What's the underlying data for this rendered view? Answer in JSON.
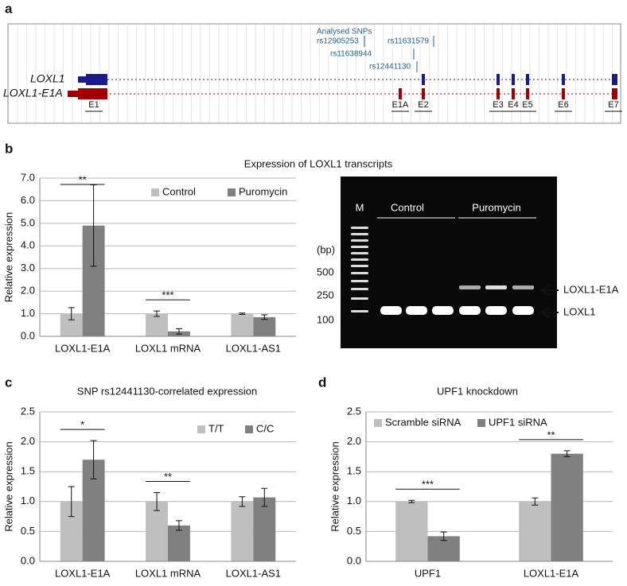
{
  "panel_labels": [
    "a",
    "b",
    "c",
    "d"
  ],
  "gene_track": {
    "snp_header": "Analysed SNPs",
    "snps": [
      "rs12905253",
      "rs11631579",
      "rs11638944",
      "rs12441130"
    ],
    "transcripts": [
      "LOXL1",
      "LOXL1-E1A"
    ],
    "exons": [
      "E1",
      "E1A",
      "E2",
      "E3",
      "E4",
      "E5",
      "E6",
      "E7"
    ]
  },
  "gel": {
    "lane_marker": "M",
    "groups": [
      "Control",
      "Puromycin"
    ],
    "unit": "(bp)",
    "ladder": [
      500,
      250,
      100
    ],
    "bands": [
      "LOXL1-E1A",
      "LOXL1"
    ]
  },
  "chart_data": [
    {
      "type": "bar",
      "title": "Expression of LOXL1 transcripts",
      "ylabel": "Relative expression",
      "categories": [
        "LOXL1-E1A",
        "LOXL1 mRNA",
        "LOXL1-AS1"
      ],
      "series": [
        {
          "name": "Control",
          "color": "#bfbfbf",
          "values": [
            1.0,
            1.0,
            1.0
          ],
          "errors": [
            0.27,
            0.12,
            0.03
          ]
        },
        {
          "name": "Puromycin",
          "color": "#808080",
          "values": [
            4.9,
            0.22,
            0.85
          ],
          "errors": [
            1.8,
            0.12,
            0.1
          ]
        }
      ],
      "significance": [
        "**",
        "***",
        null
      ],
      "ylim": [
        0,
        7
      ],
      "yticks": [
        {
          "value": 0,
          "label": "0.0"
        },
        {
          "value": 1,
          "label": "1.0"
        },
        {
          "value": 2,
          "label": "2.0"
        },
        {
          "value": 3,
          "label": "3.0"
        },
        {
          "value": 4,
          "label": "4.0"
        },
        {
          "value": 5,
          "label": "5.0"
        },
        {
          "value": 6,
          "label": "6.0"
        },
        {
          "value": 7,
          "label": "7.0"
        }
      ],
      "grid": true,
      "legend": "upper right"
    },
    {
      "type": "bar",
      "title": "SNP rs12441130-correlated expression",
      "ylabel": "Relative expression",
      "categories": [
        "LOXL1-E1A",
        "LOXL1 mRNA",
        "LOXL1-AS1"
      ],
      "series": [
        {
          "name": "T/T",
          "color": "#bfbfbf",
          "values": [
            1.0,
            1.0,
            1.0
          ],
          "errors": [
            0.25,
            0.15,
            0.08
          ]
        },
        {
          "name": "C/C",
          "color": "#808080",
          "values": [
            1.7,
            0.6,
            1.07
          ],
          "errors": [
            0.32,
            0.08,
            0.15
          ]
        }
      ],
      "significance": [
        "*",
        "**",
        null
      ],
      "ylim": [
        0,
        2.5
      ],
      "yticks": [
        {
          "value": 0,
          "label": "0.0"
        },
        0.5,
        {
          "value": 1,
          "label": "1.0"
        },
        1.5,
        {
          "value": 2,
          "label": "2.0"
        },
        2.5
      ],
      "grid": true,
      "legend": "upper right"
    },
    {
      "type": "bar",
      "title": "UPF1 knockdown",
      "ylabel": "Relative expression",
      "categories": [
        "UPF1",
        "LOXL1-E1A"
      ],
      "series": [
        {
          "name": "Scramble siRNA",
          "color": "#bfbfbf",
          "values": [
            1.0,
            1.0
          ],
          "errors": [
            0.02,
            0.06
          ]
        },
        {
          "name": "UPF1 siRNA",
          "color": "#808080",
          "values": [
            0.42,
            1.8
          ],
          "errors": [
            0.07,
            0.05
          ]
        }
      ],
      "significance": [
        "***",
        "**"
      ],
      "ylim": [
        0,
        2.5
      ],
      "yticks": [
        {
          "value": 0,
          "label": "0.0"
        },
        0.5,
        {
          "value": 1,
          "label": "1.0"
        },
        1.5,
        {
          "value": 2,
          "label": "2.0"
        },
        2.5
      ],
      "grid": true,
      "legend": "upper center"
    }
  ]
}
